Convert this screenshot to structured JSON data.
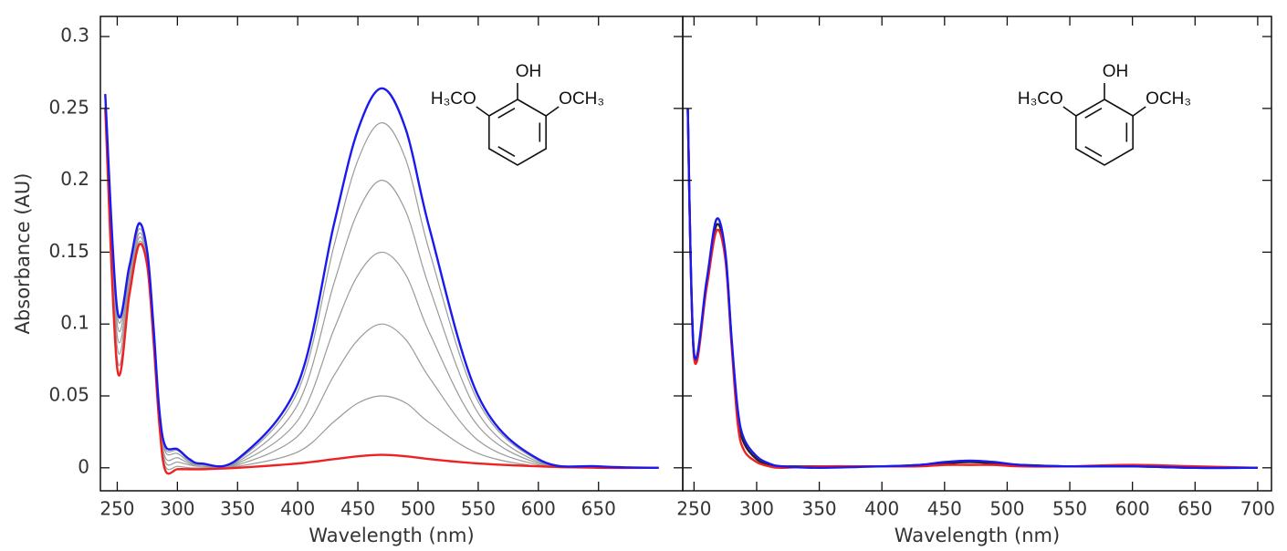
{
  "chart_data": [
    {
      "type": "line",
      "x_label": "Wavelength (nm)",
      "y_label": "Absorbance (AU)",
      "annotations": [
        "OH",
        "H₃CO",
        "OCH₃"
      ],
      "xlim": [
        236,
        720
      ],
      "ylim": [
        -0.016,
        0.314
      ],
      "xticks": [
        250,
        300,
        350,
        400,
        450,
        500,
        550,
        600,
        650
      ],
      "yticks": [
        0,
        0.05,
        0.1,
        0.15,
        0.2,
        0.25,
        0.3
      ],
      "show_y_tick_labels": true,
      "x": [
        240,
        250,
        260,
        268,
        275,
        280,
        285,
        290,
        300,
        310,
        320,
        350,
        400,
        430,
        450,
        470,
        490,
        510,
        550,
        600,
        650,
        700
      ],
      "series": [
        {
          "color": "#9a9a9a",
          "values": [
            0.252,
            0.076,
            0.123,
            0.157,
            0.142,
            0.092,
            0.032,
            0.001,
            0.001,
            0,
            0,
            0.001,
            0.011,
            0.032,
            0.045,
            0.05,
            0.045,
            0.031,
            0.01,
            0.001,
            0,
            0
          ]
        },
        {
          "color": "#9a9a9a",
          "values": [
            0.254,
            0.084,
            0.127,
            0.16,
            0.144,
            0.094,
            0.034,
            0.004,
            0.004,
            0.002,
            0.001,
            0.002,
            0.022,
            0.064,
            0.089,
            0.1,
            0.089,
            0.062,
            0.019,
            0.002,
            0,
            0
          ]
        },
        {
          "color": "#9a9a9a",
          "values": [
            0.256,
            0.092,
            0.131,
            0.163,
            0.146,
            0.096,
            0.036,
            0.007,
            0.007,
            0.003,
            0.002,
            0.003,
            0.033,
            0.096,
            0.134,
            0.15,
            0.134,
            0.093,
            0.029,
            0.003,
            0.001,
            0
          ]
        },
        {
          "color": "#9a9a9a",
          "values": [
            0.258,
            0.1,
            0.135,
            0.166,
            0.148,
            0.098,
            0.038,
            0.011,
            0.01,
            0.004,
            0.002,
            0.004,
            0.044,
            0.128,
            0.178,
            0.2,
            0.178,
            0.124,
            0.038,
            0.004,
            0.001,
            0
          ]
        },
        {
          "color": "#9a9a9a",
          "values": [
            0.259,
            0.106,
            0.138,
            0.169,
            0.149,
            0.099,
            0.039,
            0.013,
            0.012,
            0.005,
            0.003,
            0.005,
            0.053,
            0.154,
            0.214,
            0.24,
            0.214,
            0.149,
            0.046,
            0.005,
            0.001,
            0
          ]
        },
        {
          "color": "#ee2222",
          "values": [
            0.25,
            0.069,
            0.12,
            0.155,
            0.14,
            0.09,
            0.03,
            -0.002,
            -0.001,
            -0.001,
            -0.001,
            0,
            0.003,
            0.006,
            0.008,
            0.009,
            0.008,
            0.006,
            0.003,
            0.001,
            0,
            0
          ]
        },
        {
          "color": "#1a1aee",
          "values": [
            0.26,
            0.11,
            0.14,
            0.17,
            0.15,
            0.1,
            0.04,
            0.015,
            0.013,
            0.006,
            0.003,
            0.006,
            0.058,
            0.169,
            0.235,
            0.264,
            0.235,
            0.165,
            0.05,
            0.006,
            0.001,
            0
          ]
        }
      ]
    },
    {
      "type": "line",
      "x_label": "Wavelength (nm)",
      "annotations": [
        "OH",
        "H₃CO",
        "OCH₃"
      ],
      "xlim": [
        241,
        711
      ],
      "ylim": [
        -0.016,
        0.314
      ],
      "xticks": [
        250,
        300,
        350,
        400,
        450,
        500,
        550,
        600,
        650,
        700
      ],
      "yticks": [
        0,
        0.05,
        0.1,
        0.15,
        0.2,
        0.25,
        0.3
      ],
      "show_y_tick_labels": false,
      "x": [
        245,
        250,
        260,
        268,
        275,
        280,
        285,
        290,
        300,
        310,
        320,
        350,
        400,
        430,
        450,
        470,
        490,
        510,
        550,
        600,
        650,
        700
      ],
      "series": [
        {
          "color": "#222222",
          "values": [
            0.25,
            0.078,
            0.128,
            0.169,
            0.148,
            0.088,
            0.036,
            0.017,
            0.006,
            0.002,
            0.001,
            0.001,
            0.001,
            0.002,
            0.003,
            0.004,
            0.003,
            0.002,
            0.001,
            0.001,
            0,
            0
          ]
        },
        {
          "color": "#ee2222",
          "values": [
            0.25,
            0.077,
            0.125,
            0.165,
            0.145,
            0.085,
            0.03,
            0.012,
            0.004,
            0.001,
            0,
            0.001,
            0.001,
            0.001,
            0.002,
            0.002,
            0.002,
            0.001,
            0.001,
            0.002,
            0.001,
            0
          ]
        },
        {
          "color": "#1a1aee",
          "values": [
            0.25,
            0.08,
            0.13,
            0.173,
            0.15,
            0.09,
            0.04,
            0.02,
            0.008,
            0.003,
            0.001,
            0,
            0.001,
            0.002,
            0.004,
            0.005,
            0.004,
            0.002,
            0.001,
            0.001,
            0,
            0
          ]
        }
      ]
    }
  ]
}
